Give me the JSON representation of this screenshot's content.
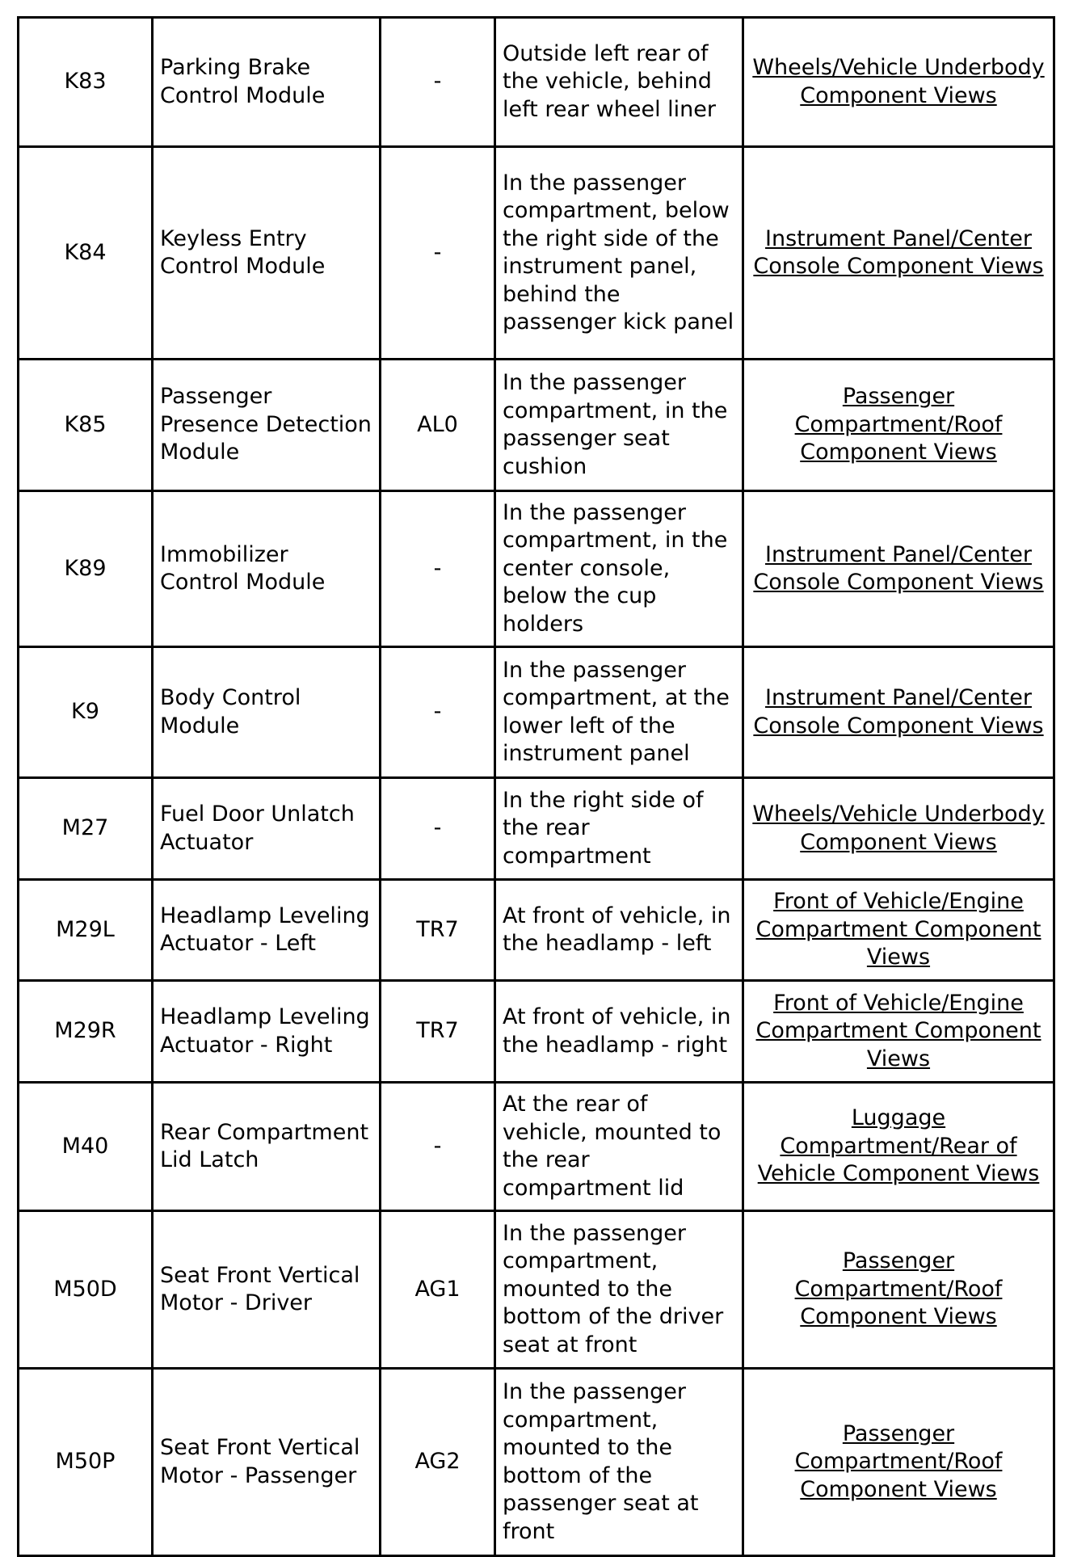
{
  "rows": [
    {
      "id": "K83",
      "name": "Parking Brake Control Module",
      "option": "-",
      "location": "Outside left rear of the vehicle, behind left rear wheel liner",
      "view": "Wheels/Vehicle Underbody Component Views"
    },
    {
      "id": "K84",
      "name": "Keyless Entry Control Module",
      "option": "-",
      "location": "In the passenger compartment, below the right side of the instrument panel, behind the passenger kick panel",
      "view": "Instrument Panel/Center Console Component Views"
    },
    {
      "id": "K85",
      "name": "Passenger Presence Detection Module",
      "option": "AL0",
      "location": "In the passenger compartment, in the passenger seat cushion",
      "view": "Passenger Compartment/Roof Component Views"
    },
    {
      "id": "K89",
      "name": "Immobilizer Control Module",
      "option": "-",
      "location": "In the passenger compartment, in the center console, below the cup holders",
      "view": "Instrument Panel/Center Console Component Views"
    },
    {
      "id": "K9",
      "name": "Body Control Module",
      "option": "-",
      "location": "In the passenger compartment, at the lower left of the instrument panel",
      "view": "Instrument Panel/Center Console Component Views"
    },
    {
      "id": "M27",
      "name": "Fuel Door Unlatch Actuator",
      "option": "-",
      "location": "In the right side of the rear compartment",
      "view": "Wheels/Vehicle Underbody Component Views"
    },
    {
      "id": "M29L",
      "name": "Headlamp Leveling Actuator - Left",
      "option": "TR7",
      "location": "At front of vehicle, in the headlamp - left",
      "view": "Front of Vehicle/Engine Compartment Component Views"
    },
    {
      "id": "M29R",
      "name": "Headlamp Leveling Actuator - Right",
      "option": "TR7",
      "location": "At front of vehicle, in the headlamp - right",
      "view": "Front of Vehicle/Engine Compartment Component Views"
    },
    {
      "id": "M40",
      "name": "Rear Compartment Lid Latch",
      "option": "-",
      "location": "At the rear of vehicle, mounted to the rear compartment lid",
      "view": "Luggage Compartment/Rear of Vehicle Component Views"
    },
    {
      "id": "M50D",
      "name": "Seat Front Vertical Motor - Driver",
      "option": "AG1",
      "location": "In the passenger compartment, mounted to the bottom of the driver seat at front",
      "view": "Passenger Compartment/Roof Component Views"
    },
    {
      "id": "M50P",
      "name": "Seat Front Vertical Motor - Passenger",
      "option": "AG2",
      "location": "In the passenger compartment, mounted to the bottom of the passenger seat at front",
      "view": "Passenger Compartment/Roof Component Views"
    }
  ]
}
